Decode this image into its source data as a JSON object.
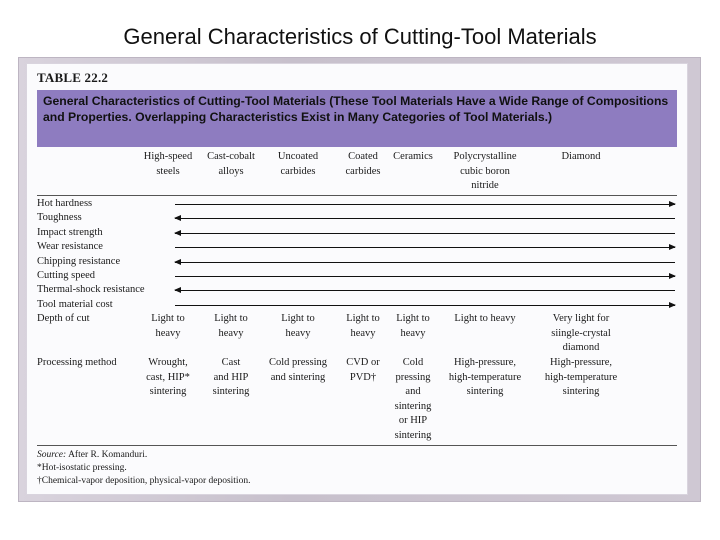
{
  "slide": {
    "title": "General Characteristics of Cutting-Tool Materials"
  },
  "table": {
    "number": "TABLE 22.2",
    "caption": "General Characteristics of Cutting-Tool Materials (These Tool Materials Have a Wide Range of Compositions and Properties. Overlapping Characteristics Exist in Many Categories of Tool Materials.)",
    "columns": [
      [
        "High-speed",
        "steels"
      ],
      [
        "Cast-cobalt",
        "alloys"
      ],
      [
        "Uncoated",
        "carbides"
      ],
      [
        "Coated",
        "carbides"
      ],
      [
        "Ceramics"
      ],
      [
        "Polycrystalline",
        "cubic boron",
        "nitride"
      ],
      [
        "Diamond"
      ]
    ],
    "arrow_rows": [
      {
        "label": "Hot hardness",
        "direction": "right"
      },
      {
        "label": "Toughness",
        "direction": "left"
      },
      {
        "label": "Impact strength",
        "direction": "left"
      },
      {
        "label": "Wear resistance",
        "direction": "right"
      },
      {
        "label": "Chipping resistance",
        "direction": "left"
      },
      {
        "label": "Cutting speed",
        "direction": "right"
      },
      {
        "label": "Thermal-shock resistance",
        "direction": "left"
      },
      {
        "label": "Tool material cost",
        "direction": "right"
      }
    ],
    "depth_of_cut": {
      "label": "Depth of cut",
      "cells": [
        [
          "Light to",
          "heavy"
        ],
        [
          "Light to",
          "heavy"
        ],
        [
          "Light to",
          "heavy"
        ],
        [
          "Light to",
          "heavy"
        ],
        [
          "Light to",
          "heavy"
        ],
        [
          "Light to heavy"
        ],
        [
          "Very light for",
          "siingle-crystal",
          "diamond"
        ]
      ]
    },
    "processing_method": {
      "label": "Processing method",
      "cells": [
        [
          "Wrought,",
          "cast, HIP*",
          "sintering"
        ],
        [
          "Cast",
          "and HIP",
          "sintering"
        ],
        [
          "Cold pressing",
          "and sintering"
        ],
        [
          "CVD or",
          "PVD†"
        ],
        [
          "Cold",
          "pressing",
          "and",
          "sintering",
          "or HIP",
          "sintering"
        ],
        [
          "High-pressure,",
          "high-temperature",
          "sintering"
        ],
        [
          "High-pressure,",
          "high-temperature",
          "sintering"
        ]
      ]
    },
    "footnotes": {
      "source_label": "Source:",
      "source_text": "After R. Komanduri.",
      "hip": "*Hot-isostatic pressing.",
      "cvd": "†Chemical-vapor deposition, physical-vapor deposition."
    }
  }
}
